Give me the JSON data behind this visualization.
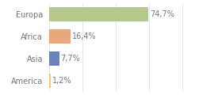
{
  "categories": [
    "America",
    "Asia",
    "Africa",
    "Europa"
  ],
  "values": [
    1.2,
    7.7,
    16.4,
    74.7
  ],
  "labels": [
    "1,2%",
    "7,7%",
    "16,4%",
    "74,7%"
  ],
  "colors": [
    "#f0c97a",
    "#6b83bc",
    "#e8a87c",
    "#b5c98e"
  ],
  "background_color": "#ffffff",
  "text_color": "#777777",
  "bar_height": 0.65,
  "label_fontsize": 7.0,
  "tick_fontsize": 7.0,
  "xlim": [
    0,
    105
  ],
  "grid_color": "#dddddd"
}
